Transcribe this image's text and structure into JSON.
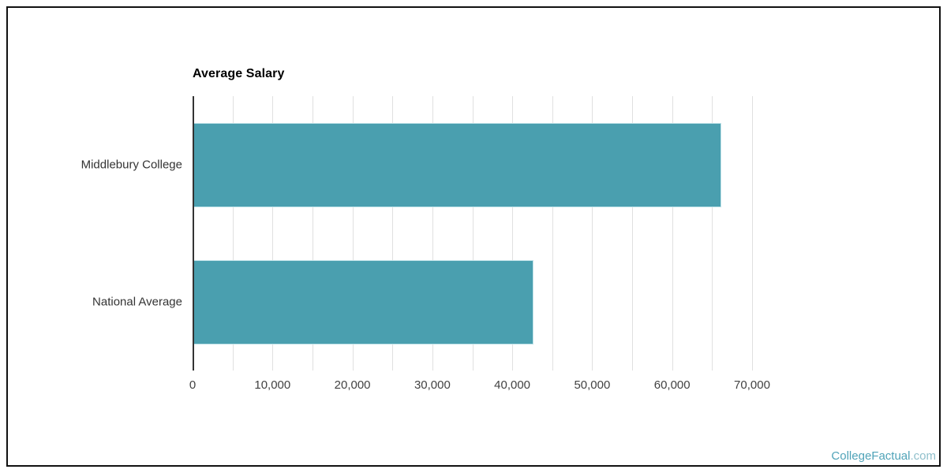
{
  "page": {
    "watermark": {
      "brand": "CollegeFactual",
      "suffix": ".com"
    }
  },
  "chart_data": {
    "type": "bar",
    "orientation": "horizontal",
    "title": "Average Salary",
    "categories": [
      "Middlebury College",
      "National Average"
    ],
    "values": [
      66000,
      42500
    ],
    "xlabel": "",
    "ylabel": "",
    "xlim": [
      0,
      70000
    ],
    "x_tick_interval": 10000,
    "x_tick_labels": [
      "0",
      "10,000",
      "20,000",
      "30,000",
      "40,000",
      "50,000",
      "60,000",
      "70,000"
    ],
    "gridline_interval": 5000,
    "grid": true,
    "legend": false,
    "colors": {
      "bar": "#4A9FAF",
      "bar_border": "#BFE2E8",
      "gridline": "#E0E0E0",
      "axis_line": "#333333",
      "tick_label": "#424242",
      "category_label": "#333333",
      "title": "#000000",
      "watermark_brand": "#4FA3B8",
      "watermark_suffix": "#8FBFCB"
    }
  }
}
